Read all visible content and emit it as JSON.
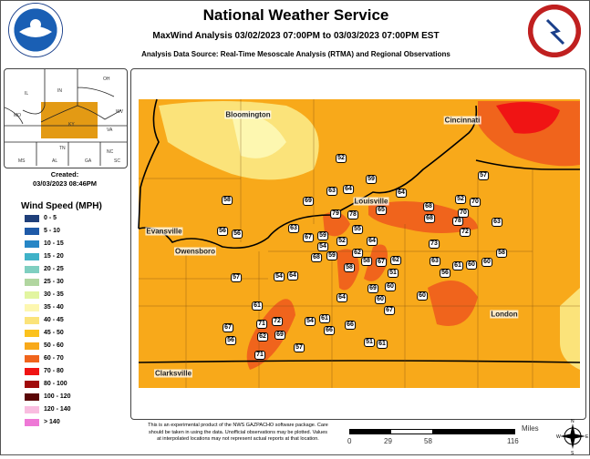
{
  "header": {
    "title": "National Weather Service",
    "subtitle": "MaxWind Analysis 03/02/2023 07:00PM to 03/03/2023 07:00PM EST",
    "source": "Analysis Data Source: Real-Time Mesoscale Analysis (RTMA) and Regional Observations"
  },
  "logos": {
    "left": "NOAA",
    "right": "National Weather Service - U.S. Department of Commerce"
  },
  "inset": {
    "states": [
      "IL",
      "IN",
      "OH",
      "KY",
      "WV",
      "MO",
      "VA",
      "TN",
      "NC",
      "MS",
      "AL",
      "GA",
      "SC"
    ],
    "highlight_color": "#e39a14"
  },
  "created": {
    "label": "Created:",
    "value": "03/03/2023 08:46PM"
  },
  "legend": {
    "title": "Wind Speed (MPH)",
    "items": [
      {
        "label": "0 - 5",
        "color": "#1f3f7a"
      },
      {
        "label": "5 - 10",
        "color": "#1f5aa8"
      },
      {
        "label": "10 - 15",
        "color": "#2686c6"
      },
      {
        "label": "15 - 20",
        "color": "#3fb2c8"
      },
      {
        "label": "20 - 25",
        "color": "#7fcfc0"
      },
      {
        "label": "25 - 30",
        "color": "#b1d6a0"
      },
      {
        "label": "30 - 35",
        "color": "#e2f5a0"
      },
      {
        "label": "35 - 40",
        "color": "#fdf7b0"
      },
      {
        "label": "40 - 45",
        "color": "#fbe37a"
      },
      {
        "label": "45 - 50",
        "color": "#fbc21e"
      },
      {
        "label": "50 - 60",
        "color": "#f8a91a"
      },
      {
        "label": "60 - 70",
        "color": "#f0641c"
      },
      {
        "label": "70 - 80",
        "color": "#f01414"
      },
      {
        "label": "80 - 100",
        "color": "#a00a0a"
      },
      {
        "label": "100 - 120",
        "color": "#5a0505"
      },
      {
        "label": "120 - 140",
        "color": "#f9bde0"
      },
      {
        "label": "> 140",
        "color": "#ee78d6"
      }
    ]
  },
  "map": {
    "cities": [
      "Bloomington",
      "Cincinnati",
      "Louisville",
      "Evansville",
      "Owensboro",
      "London",
      "Clarksville"
    ],
    "stations": [
      "52",
      "59",
      "63",
      "64",
      "64",
      "69",
      "58",
      "79",
      "78",
      "65",
      "68",
      "68",
      "52",
      "70",
      "70",
      "57",
      "78",
      "72",
      "63",
      "56",
      "56",
      "63",
      "67",
      "59",
      "52",
      "55",
      "54",
      "68",
      "59",
      "62",
      "64",
      "73",
      "58",
      "58",
      "67",
      "62",
      "51",
      "63",
      "56",
      "61",
      "60",
      "60",
      "58",
      "57",
      "54",
      "64",
      "64",
      "69",
      "60",
      "60",
      "60",
      "67",
      "61",
      "67",
      "56",
      "71",
      "72",
      "62",
      "69",
      "54",
      "61",
      "66",
      "66",
      "51",
      "61",
      "57",
      "71"
    ]
  },
  "footer": {
    "disclaimer": "This is an experimental product of the NWS GAZPACHO software package. Care should be taken in using the data. Unofficial observations may be plotted. Values at interpolated locations may not represent actual reports at that location.",
    "scale_unit": "Miles",
    "scale_ticks": [
      "0",
      "29",
      "58",
      "116"
    ],
    "compass": [
      "N",
      "E",
      "S",
      "W"
    ]
  }
}
